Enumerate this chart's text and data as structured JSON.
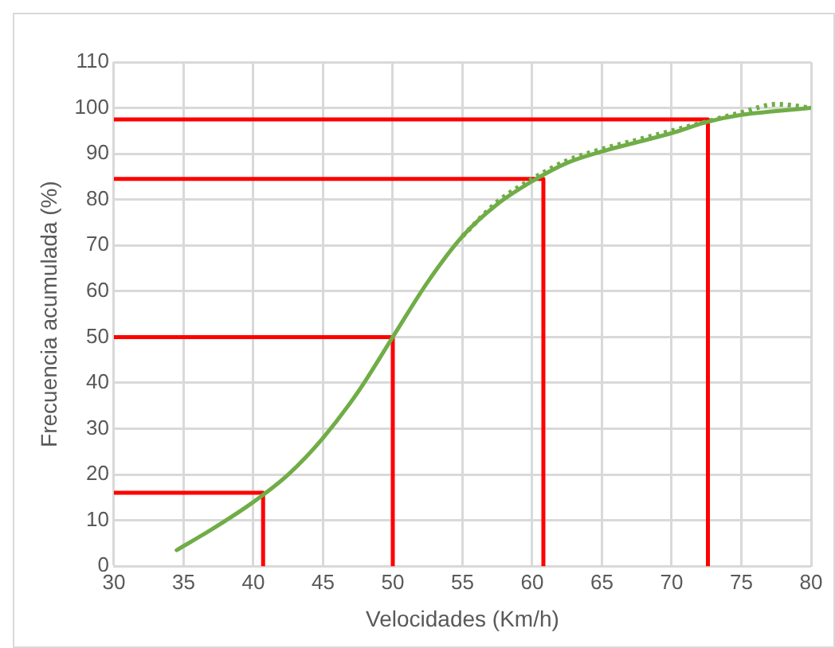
{
  "chart_data": {
    "type": "line",
    "xlabel": "Velocidades (Km/h)",
    "ylabel": "Frecuencia acumulada (%)",
    "xlim": [
      30,
      80
    ],
    "xticks": [
      30,
      35,
      40,
      45,
      50,
      55,
      60,
      65,
      70,
      75,
      80
    ],
    "ylim": [
      0,
      110
    ],
    "yticks": [
      0,
      10,
      20,
      30,
      40,
      50,
      60,
      70,
      80,
      90,
      100,
      110
    ],
    "grid": true,
    "legend": false,
    "marker": "none",
    "series": [
      {
        "color": "#70ad47",
        "line_style": "solid",
        "x": [
          34.5,
          37,
          40,
          42.5,
          45,
          47.5,
          50,
          52.5,
          55,
          57.5,
          60,
          62.5,
          65,
          67.5,
          70,
          72.6,
          75,
          77.5,
          80
        ],
        "values": [
          3.5,
          8,
          14,
          20,
          28,
          38,
          50,
          62,
          72,
          79,
          84,
          88,
          90.5,
          92.5,
          94.5,
          97,
          98.5,
          99.3,
          100
        ]
      },
      {
        "color": "#70ad47",
        "line_style": "dotted",
        "x": [
          55,
          57.5,
          60,
          62.5,
          65,
          67.5,
          70,
          72.5,
          75,
          77.5,
          80
        ],
        "values": [
          72,
          79.5,
          84.5,
          88.5,
          91,
          93,
          95,
          97,
          99,
          100.8,
          100
        ]
      },
      {
        "color": "#ff0000",
        "line_style": "solid",
        "x": [
          30,
          40.7,
          40.7
        ],
        "values": [
          16,
          16,
          0
        ]
      },
      {
        "color": "#ff0000",
        "line_style": "solid",
        "x": [
          30,
          50,
          50
        ],
        "values": [
          50,
          50,
          0
        ]
      },
      {
        "color": "#ff0000",
        "line_style": "solid",
        "x": [
          30,
          60.8,
          60.8
        ],
        "values": [
          84.5,
          84.5,
          0
        ]
      },
      {
        "color": "#ff0000",
        "line_style": "solid",
        "x": [
          30,
          72.6,
          72.6
        ],
        "values": [
          97.5,
          97.5,
          0
        ]
      }
    ]
  }
}
